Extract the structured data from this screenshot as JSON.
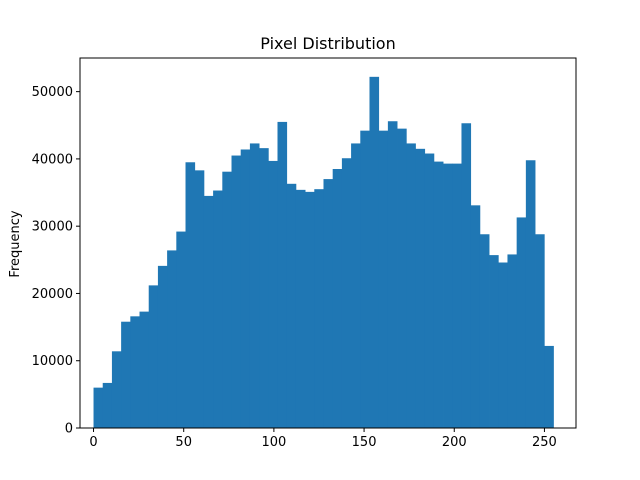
{
  "chart_data": {
    "type": "bar",
    "title": "Pixel Distribution",
    "xlabel": "",
    "ylabel": "Frequency",
    "color": "#1f77b4",
    "bin_start": 0,
    "bin_width": 5.1,
    "values": [
      6000,
      6700,
      11400,
      15800,
      16600,
      17300,
      21200,
      24100,
      26400,
      29200,
      39500,
      38300,
      34500,
      35300,
      38100,
      40500,
      41400,
      42300,
      41600,
      39700,
      45500,
      36300,
      35400,
      35100,
      35500,
      37000,
      38500,
      40100,
      42300,
      44200,
      52200,
      44200,
      45600,
      44500,
      42300,
      41500,
      40800,
      39600,
      39300,
      39300,
      45300,
      33100,
      28800,
      25700,
      24600,
      25800,
      31300,
      39800,
      28800,
      12200
    ],
    "xlim": [
      -7.5,
      267.5
    ],
    "ylim": [
      0,
      55000
    ],
    "xticks": [
      0,
      50,
      100,
      150,
      200,
      250
    ],
    "yticks": [
      0,
      10000,
      20000,
      30000,
      40000,
      50000
    ],
    "grid": false
  }
}
